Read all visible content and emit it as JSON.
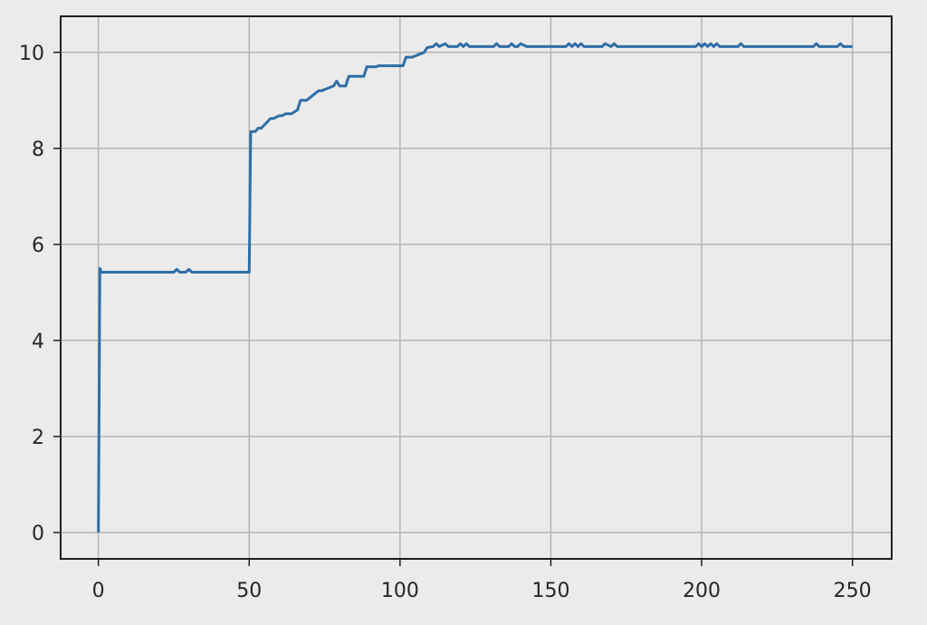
{
  "chart_data": {
    "type": "line",
    "title": "",
    "xlabel": "",
    "ylabel": "",
    "xlim": [
      -12.5,
      263
    ],
    "ylim": [
      -0.55,
      10.75
    ],
    "grid": true,
    "xticks": [
      0,
      50,
      100,
      150,
      200,
      250
    ],
    "yticks": [
      0,
      2,
      4,
      6,
      8,
      10
    ],
    "colors": {
      "background": "#ebebeb",
      "line": "#2f6ea6",
      "grid": "#b4b4b4",
      "frame": "#1f1f1f"
    },
    "series": [
      {
        "x": [
          0,
          0.5,
          1,
          2,
          25,
          26,
          27,
          29,
          30,
          31,
          50,
          50.5,
          52,
          53,
          54,
          56,
          57,
          58,
          60,
          61,
          62,
          64,
          66,
          67,
          69,
          73,
          74,
          78,
          79,
          80,
          82,
          83,
          84,
          88,
          89,
          92,
          93,
          101,
          102,
          104,
          108,
          109,
          111,
          112,
          113,
          115,
          116,
          119,
          120,
          121,
          122,
          123,
          124,
          131,
          132,
          133,
          136,
          137,
          138,
          139,
          140,
          142,
          143,
          155,
          156,
          157,
          158,
          159,
          160,
          161,
          162,
          167,
          168,
          170,
          171,
          172,
          198,
          199,
          200,
          201,
          202,
          203,
          204,
          205,
          206,
          212,
          213,
          214,
          237,
          238,
          239,
          245,
          246,
          247,
          250
        ],
        "y": [
          0,
          5.5,
          5.42,
          5.42,
          5.42,
          5.48,
          5.42,
          5.42,
          5.48,
          5.42,
          5.42,
          8.35,
          8.35,
          8.42,
          8.42,
          8.55,
          8.62,
          8.62,
          8.68,
          8.68,
          8.72,
          8.72,
          8.8,
          9.0,
          9.0,
          9.2,
          9.2,
          9.3,
          9.4,
          9.3,
          9.3,
          9.5,
          9.5,
          9.5,
          9.7,
          9.7,
          9.72,
          9.72,
          9.9,
          9.9,
          10.0,
          10.1,
          10.12,
          10.18,
          10.12,
          10.18,
          10.12,
          10.12,
          10.18,
          10.12,
          10.18,
          10.12,
          10.12,
          10.12,
          10.18,
          10.12,
          10.12,
          10.18,
          10.12,
          10.12,
          10.18,
          10.12,
          10.12,
          10.12,
          10.18,
          10.12,
          10.18,
          10.12,
          10.18,
          10.12,
          10.12,
          10.12,
          10.18,
          10.12,
          10.18,
          10.12,
          10.12,
          10.18,
          10.12,
          10.18,
          10.12,
          10.18,
          10.12,
          10.18,
          10.12,
          10.12,
          10.18,
          10.12,
          10.12,
          10.18,
          10.12,
          10.12,
          10.18,
          10.12,
          10.12
        ]
      }
    ]
  }
}
